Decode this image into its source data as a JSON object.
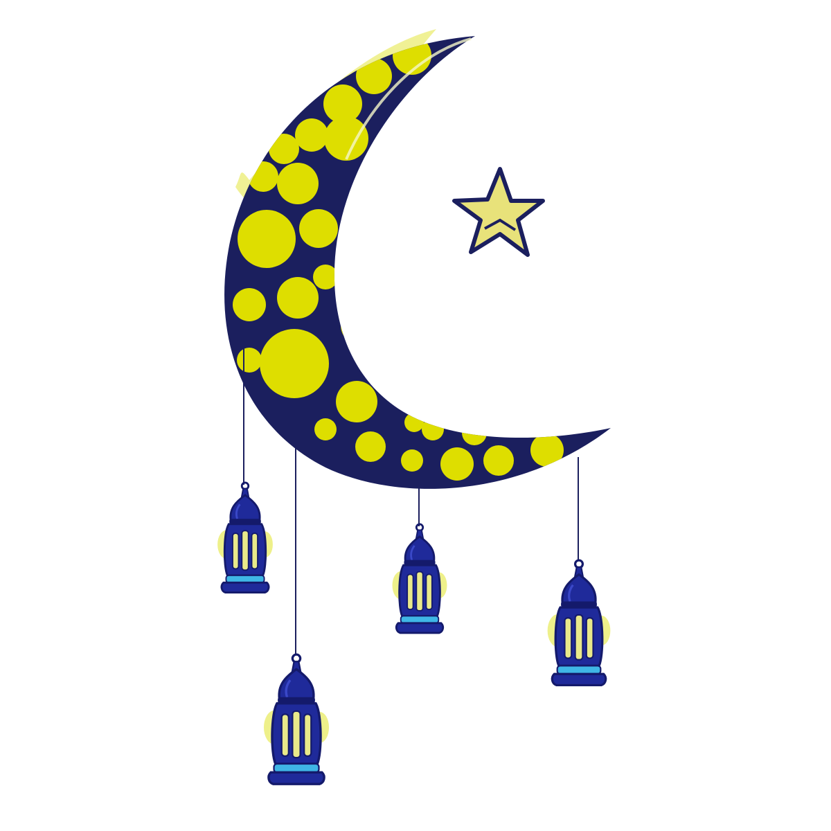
{
  "illustration": {
    "subject": "crescent-moon-with-star-and-hanging-lanterns",
    "colors": {
      "background": "#ffffff",
      "navy": "#1b1f5e",
      "moon_yellow": "#dede00",
      "soft_yellow": "#eef08a",
      "star_yellow": "#e8e27a",
      "lantern_blue": "#1f2a9a",
      "lantern_dark": "#141a6b",
      "lantern_band": "#3fb6e6",
      "lantern_window": "#e9e98a"
    },
    "icons": [
      "crescent-moon-icon",
      "star-icon",
      "lantern-icon"
    ],
    "lantern_count": 4
  }
}
